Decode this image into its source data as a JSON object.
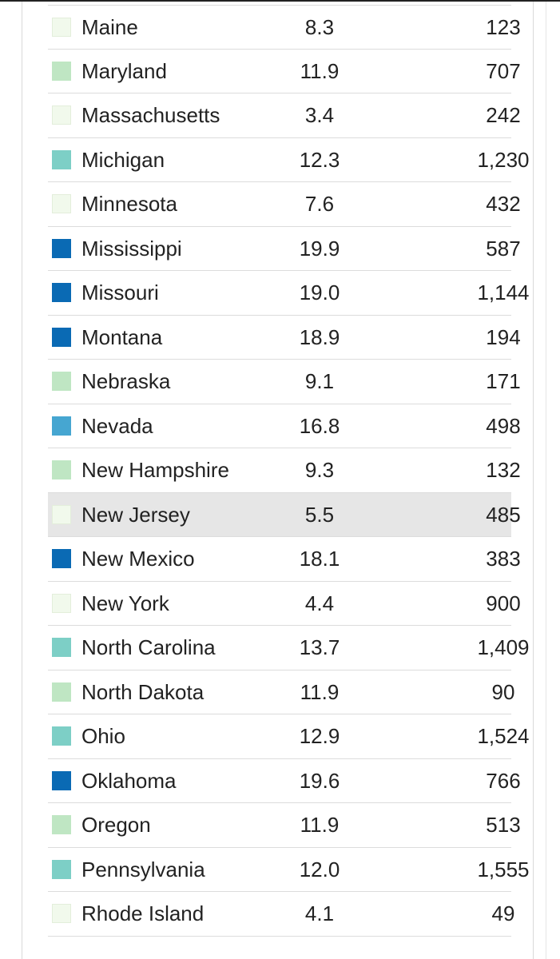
{
  "colors": {
    "very_light": "#f1f9ec",
    "light_green": "#bfe6c3",
    "teal": "#7dcfc6",
    "light_blue": "#46a6d1",
    "dark_blue": "#0a6ab4"
  },
  "rows": [
    {
      "state": "Maine",
      "rate": "8.3",
      "deaths": "123",
      "color": "#f1f9ec",
      "highlight": false
    },
    {
      "state": "Maryland",
      "rate": "11.9",
      "deaths": "707",
      "color": "#bfe6c3",
      "highlight": false
    },
    {
      "state": "Massachusetts",
      "rate": "3.4",
      "deaths": "242",
      "color": "#f1f9ec",
      "highlight": false
    },
    {
      "state": "Michigan",
      "rate": "12.3",
      "deaths": "1,230",
      "color": "#7dcfc6",
      "highlight": false
    },
    {
      "state": "Minnesota",
      "rate": "7.6",
      "deaths": "432",
      "color": "#f1f9ec",
      "highlight": false
    },
    {
      "state": "Mississippi",
      "rate": "19.9",
      "deaths": "587",
      "color": "#0a6ab4",
      "highlight": false
    },
    {
      "state": "Missouri",
      "rate": "19.0",
      "deaths": "1,144",
      "color": "#0a6ab4",
      "highlight": false
    },
    {
      "state": "Montana",
      "rate": "18.9",
      "deaths": "194",
      "color": "#0a6ab4",
      "highlight": false
    },
    {
      "state": "Nebraska",
      "rate": "9.1",
      "deaths": "171",
      "color": "#bfe6c3",
      "highlight": false
    },
    {
      "state": "Nevada",
      "rate": "16.8",
      "deaths": "498",
      "color": "#46a6d1",
      "highlight": false
    },
    {
      "state": "New Hampshire",
      "rate": "9.3",
      "deaths": "132",
      "color": "#bfe6c3",
      "highlight": false
    },
    {
      "state": "New Jersey",
      "rate": "5.5",
      "deaths": "485",
      "color": "#f1f9ec",
      "highlight": true
    },
    {
      "state": "New Mexico",
      "rate": "18.1",
      "deaths": "383",
      "color": "#0a6ab4",
      "highlight": false
    },
    {
      "state": "New York",
      "rate": "4.4",
      "deaths": "900",
      "color": "#f1f9ec",
      "highlight": false
    },
    {
      "state": "North Carolina",
      "rate": "13.7",
      "deaths": "1,409",
      "color": "#7dcfc6",
      "highlight": false
    },
    {
      "state": "North Dakota",
      "rate": "11.9",
      "deaths": "90",
      "color": "#bfe6c3",
      "highlight": false
    },
    {
      "state": "Ohio",
      "rate": "12.9",
      "deaths": "1,524",
      "color": "#7dcfc6",
      "highlight": false
    },
    {
      "state": "Oklahoma",
      "rate": "19.6",
      "deaths": "766",
      "color": "#0a6ab4",
      "highlight": false
    },
    {
      "state": "Oregon",
      "rate": "11.9",
      "deaths": "513",
      "color": "#bfe6c3",
      "highlight": false
    },
    {
      "state": "Pennsylvania",
      "rate": "12.0",
      "deaths": "1,555",
      "color": "#7dcfc6",
      "highlight": false
    },
    {
      "state": "Rhode Island",
      "rate": "4.1",
      "deaths": "49",
      "color": "#f1f9ec",
      "highlight": false
    }
  ]
}
